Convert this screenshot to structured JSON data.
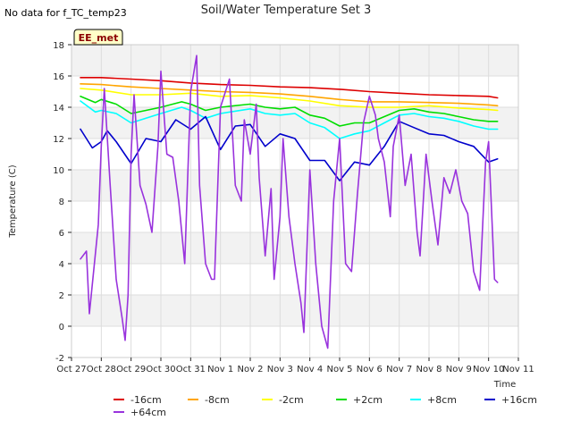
{
  "notice": "No data for f_TC_temp23",
  "chart_data": {
    "type": "line",
    "title": "Soil/Water Temperature Set 3",
    "xlabel": "Time",
    "ylabel": "Temperature (C)",
    "ylim": [
      -2,
      18
    ],
    "xlim": [
      0,
      15
    ],
    "yticks": [
      -2,
      0,
      2,
      4,
      6,
      8,
      10,
      12,
      14,
      16,
      18
    ],
    "x_tick_labels": [
      "Oct 27",
      "Oct 28",
      "Oct 29",
      "Oct 30",
      "Oct 31",
      "Nov 1",
      "Nov 2",
      "Nov 3",
      "Nov 4",
      "Nov 5",
      "Nov 6",
      "Nov 7",
      "Nov 8",
      "Nov 9",
      "Nov 10",
      "Nov 11"
    ],
    "grid": true,
    "legend_placement": "bottom",
    "badge": "EE_met",
    "series": [
      {
        "name": "-16cm",
        "color": "#dd0000",
        "x": [
          0.3,
          1,
          2,
          3,
          4,
          5,
          6,
          7,
          8,
          9,
          10,
          11,
          12,
          13,
          14,
          14.3
        ],
        "y": [
          15.9,
          15.9,
          15.8,
          15.7,
          15.55,
          15.45,
          15.4,
          15.3,
          15.25,
          15.15,
          15.0,
          14.9,
          14.8,
          14.75,
          14.7,
          14.6
        ]
      },
      {
        "name": "-8cm",
        "color": "#ffa500",
        "x": [
          0.3,
          1,
          2,
          3,
          4,
          5,
          6,
          7,
          8,
          9,
          10,
          11,
          12,
          13,
          14,
          14.3
        ],
        "y": [
          15.5,
          15.45,
          15.3,
          15.2,
          15.1,
          15.0,
          14.95,
          14.85,
          14.7,
          14.5,
          14.35,
          14.35,
          14.3,
          14.25,
          14.15,
          14.1
        ]
      },
      {
        "name": "-2cm",
        "color": "#ffff00",
        "x": [
          0.3,
          1,
          2,
          3,
          4,
          5,
          6,
          7,
          8,
          9,
          10,
          11,
          12,
          13,
          14,
          14.3
        ],
        "y": [
          15.2,
          15.1,
          14.8,
          14.8,
          14.9,
          14.7,
          14.75,
          14.6,
          14.4,
          14.1,
          14.0,
          14.0,
          14.1,
          13.95,
          13.85,
          13.8
        ]
      },
      {
        "name": "+2cm",
        "color": "#00dd00",
        "x": [
          0.3,
          0.8,
          1,
          1.5,
          2,
          3,
          3.7,
          4,
          4.5,
          5,
          6,
          6.5,
          7,
          7.5,
          8,
          8.5,
          9,
          9.5,
          10,
          10.5,
          11,
          11.5,
          12,
          12.5,
          13,
          13.5,
          14,
          14.3
        ],
        "y": [
          14.7,
          14.3,
          14.5,
          14.2,
          13.6,
          14.0,
          14.35,
          14.2,
          13.8,
          14.0,
          14.2,
          14.0,
          13.9,
          14.0,
          13.5,
          13.3,
          12.8,
          13.0,
          13.0,
          13.4,
          13.8,
          13.9,
          13.7,
          13.6,
          13.4,
          13.2,
          13.1,
          13.1
        ]
      },
      {
        "name": "+8cm",
        "color": "#00ffff",
        "x": [
          0.3,
          0.8,
          1,
          1.5,
          2,
          3,
          3.7,
          4,
          4.5,
          5,
          6,
          6.5,
          7,
          7.5,
          8,
          8.5,
          9,
          9.5,
          10,
          10.5,
          11,
          11.5,
          12,
          12.5,
          13,
          13.5,
          14,
          14.3
        ],
        "y": [
          14.4,
          13.7,
          13.8,
          13.6,
          13.0,
          13.6,
          14.0,
          13.8,
          13.3,
          13.6,
          13.9,
          13.6,
          13.5,
          13.6,
          13.0,
          12.7,
          12.0,
          12.3,
          12.5,
          13.0,
          13.5,
          13.6,
          13.4,
          13.3,
          13.1,
          12.8,
          12.6,
          12.6
        ]
      },
      {
        "name": "+16cm",
        "color": "#0000cc",
        "x": [
          0.3,
          0.7,
          1,
          1.2,
          1.5,
          2,
          2.5,
          3,
          3.5,
          4,
          4.5,
          5,
          5.5,
          6,
          6.5,
          7,
          7.5,
          8,
          8.5,
          9,
          9.5,
          10,
          10.5,
          11,
          11.5,
          12,
          12.5,
          13,
          13.5,
          14,
          14.3
        ],
        "y": [
          12.6,
          11.4,
          11.8,
          12.5,
          11.8,
          10.4,
          12.0,
          11.8,
          13.2,
          12.6,
          13.4,
          11.3,
          12.8,
          12.9,
          11.5,
          12.3,
          12.0,
          10.6,
          10.6,
          9.3,
          10.5,
          10.3,
          11.5,
          13.1,
          12.7,
          12.3,
          12.2,
          11.8,
          11.5,
          10.5,
          10.7
        ]
      },
      {
        "name": "+64cm",
        "color": "#9933dd",
        "x": [
          0.3,
          0.5,
          0.6,
          0.9,
          1.0,
          1.1,
          1.3,
          1.5,
          1.7,
          1.8,
          1.9,
          2.0,
          2.1,
          2.3,
          2.5,
          2.7,
          2.9,
          3.0,
          3.2,
          3.4,
          3.6,
          3.8,
          4.0,
          4.2,
          4.3,
          4.5,
          4.7,
          4.8,
          5.0,
          5.3,
          5.5,
          5.7,
          5.8,
          6.0,
          6.2,
          6.3,
          6.5,
          6.7,
          6.8,
          7.0,
          7.1,
          7.3,
          7.5,
          7.7,
          7.8,
          8.0,
          8.2,
          8.4,
          8.6,
          8.8,
          9.0,
          9.2,
          9.4,
          9.6,
          9.8,
          10.0,
          10.2,
          10.3,
          10.5,
          10.7,
          10.8,
          11.0,
          11.2,
          11.4,
          11.6,
          11.7,
          11.9,
          12.1,
          12.3,
          12.5,
          12.7,
          12.9,
          13.1,
          13.3,
          13.5,
          13.7,
          13.9,
          14.0,
          14.2,
          14.3
        ],
        "y": [
          4.3,
          4.8,
          0.8,
          6.5,
          11.5,
          15.2,
          9.0,
          3.0,
          0.5,
          -0.9,
          2.0,
          11.0,
          14.8,
          9.0,
          7.8,
          6.0,
          11.5,
          16.3,
          11.0,
          10.8,
          8.0,
          4.0,
          15.0,
          17.3,
          9.0,
          4.0,
          3.0,
          3.0,
          14.0,
          15.8,
          9.0,
          8.0,
          13.2,
          11.0,
          14.2,
          9.5,
          4.5,
          8.8,
          3.0,
          7.0,
          12.0,
          7.0,
          4.0,
          1.5,
          -0.4,
          10.0,
          4.0,
          0.0,
          -1.4,
          8.0,
          12.0,
          4.0,
          3.5,
          8.5,
          13.0,
          14.7,
          13.5,
          12.0,
          10.5,
          7.0,
          11.5,
          13.5,
          9.0,
          11.0,
          6.0,
          4.5,
          11.0,
          8.0,
          5.2,
          9.5,
          8.5,
          10.0,
          8.0,
          7.2,
          3.5,
          2.3,
          10.5,
          11.8,
          3.0,
          2.8
        ]
      }
    ]
  }
}
